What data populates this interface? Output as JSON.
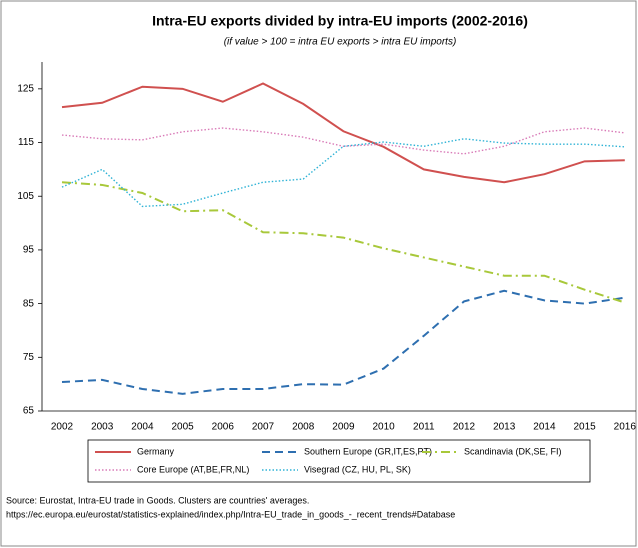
{
  "chart_data": {
    "type": "line",
    "title": "Intra-EU exports divided by intra-EU imports (2002-2016)",
    "subtitle": "(if value > 100 = intra EU exports > intra EU imports)",
    "categories": [
      "2002",
      "2003",
      "2004",
      "2005",
      "2006",
      "2007",
      "2008",
      "2009",
      "2010",
      "2011",
      "2012",
      "2013",
      "2014",
      "2015",
      "2016"
    ],
    "series": [
      {
        "name": "Germany",
        "color": "#d0504f",
        "line_style": "solid",
        "values": [
          121.6,
          122.4,
          125.4,
          125,
          122.6,
          126,
          122.2,
          117.1,
          114.2,
          110,
          108.6,
          107.6,
          109.1,
          111.5,
          111.7
        ]
      },
      {
        "name": "Southern Europe (GR,IT,ES,PT)",
        "color": "#2e6fb0",
        "line_style": "dashed",
        "values": [
          70.4,
          70.8,
          69.1,
          68.2,
          69.1,
          69.1,
          70,
          69.9,
          72.9,
          79,
          85.4,
          87.4,
          85.6,
          85,
          86.1
        ]
      },
      {
        "name": "Scandinavia (DK,SE, FI)",
        "color": "#a8c83a",
        "line_style": "dashdot",
        "values": [
          107.6,
          107.1,
          105.6,
          102.2,
          102.4,
          98.3,
          98.1,
          97.3,
          95.3,
          93.6,
          91.9,
          90.2,
          90.2,
          87.6,
          85.2
        ]
      },
      {
        "name": "Core Europe (AT,BE,FR,NL)",
        "color": "#d97bb8",
        "line_style": "dotted",
        "values": [
          116.4,
          115.7,
          115.5,
          117,
          117.7,
          117,
          116,
          114.3,
          114.7,
          113.6,
          112.9,
          114.3,
          117,
          117.7,
          116.8
        ]
      },
      {
        "name": "Visegrad (CZ, HU, PL, SK)",
        "color": "#2fb3d6",
        "line_style": "dotted",
        "values": [
          106.7,
          110,
          103.1,
          103.5,
          105.6,
          107.6,
          108.2,
          114.3,
          115.1,
          114.3,
          115.7,
          114.9,
          114.7,
          114.7,
          114.2
        ]
      }
    ],
    "ylim": [
      65,
      130
    ],
    "yticks": [
      65,
      75,
      85,
      95,
      105,
      115,
      125
    ],
    "grid": false,
    "source": [
      "Source: Eurostat, Intra-EU trade in Goods. Clusters are countries' averages.",
      "https://ec.europa.eu/eurostat/statistics-explained/index.php/Intra-EU_trade_in_goods_-_recent_trends#Database"
    ]
  }
}
